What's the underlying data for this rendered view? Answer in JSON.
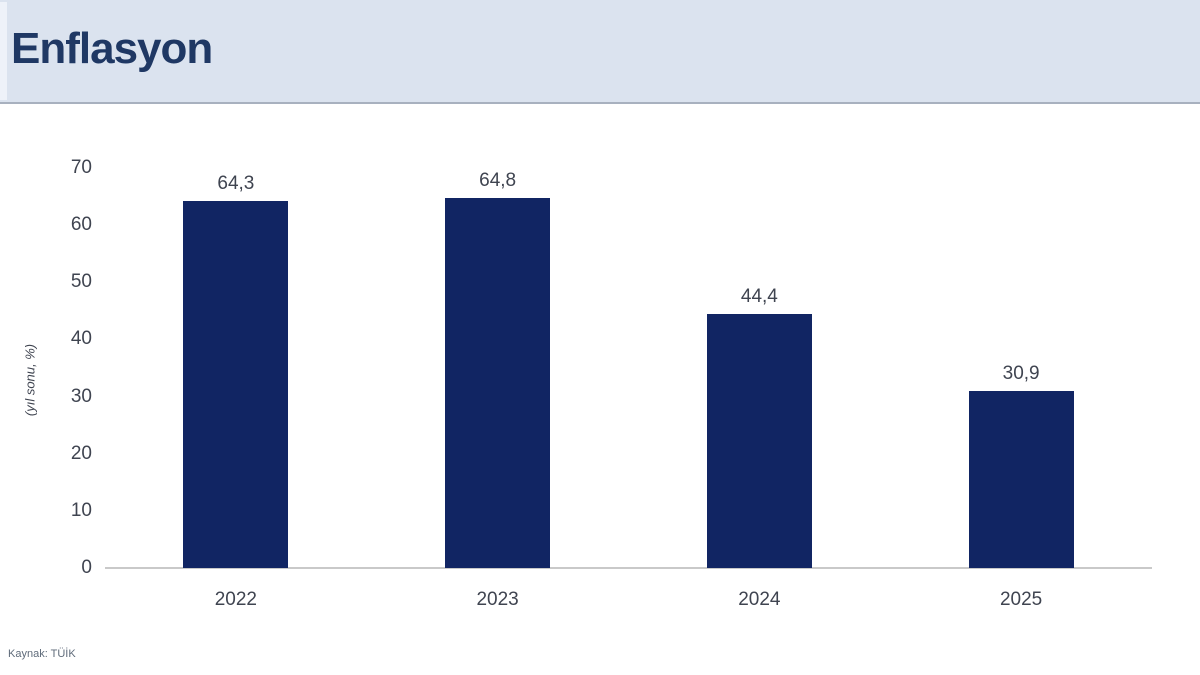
{
  "header": {
    "title": "Enflasyon"
  },
  "chart_data": {
    "type": "bar",
    "title": "Enflasyon",
    "categories": [
      "2022",
      "2023",
      "2024",
      "2025"
    ],
    "values": [
      64.3,
      64.8,
      44.4,
      30.9
    ],
    "value_labels": [
      "64,3",
      "64,8",
      "44,4",
      "30,9"
    ],
    "xlabel": "",
    "ylabel": "(yıl sonu, %)",
    "ylim": [
      0,
      70
    ],
    "yticks": [
      0,
      10,
      20,
      30,
      40,
      50,
      60,
      70
    ],
    "grid": false,
    "legend_position": "none",
    "bar_color": "#112563",
    "label_color": "#3f4450",
    "axis_line_color": "#c9c9c9",
    "source": "Kaynak: TÜİK"
  },
  "colors": {
    "header_background": "#dbe3ef",
    "header_border": "#a8b1bf",
    "title_text": "#1f3864",
    "bar": "#112563"
  }
}
